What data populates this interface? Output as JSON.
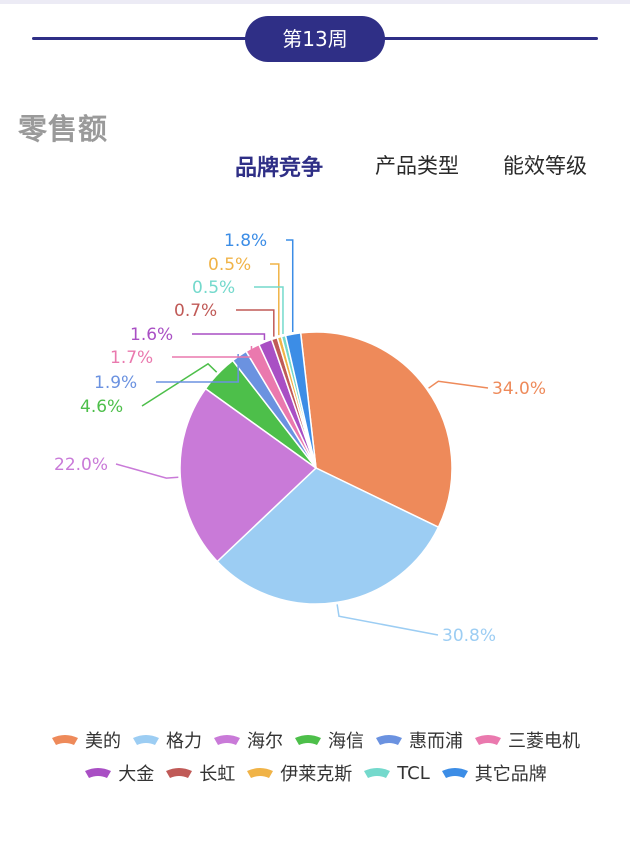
{
  "header": {
    "week_label": "第13周"
  },
  "section": {
    "title": "零售额"
  },
  "tabs": [
    {
      "label": "品牌竞争",
      "active": true
    },
    {
      "label": "产品类型",
      "active": false
    },
    {
      "label": "能效等级",
      "active": false
    }
  ],
  "chart_data": {
    "type": "pie",
    "categories": [
      "美的",
      "格力",
      "海尔",
      "海信",
      "惠而浦",
      "三菱电机",
      "大金",
      "长虹",
      "伊莱克斯",
      "TCL",
      "其它品牌"
    ],
    "values": [
      34.0,
      30.8,
      22.0,
      4.6,
      1.9,
      1.7,
      1.6,
      0.7,
      0.5,
      0.5,
      1.8
    ],
    "labels": [
      "34.0%",
      "30.8%",
      "22.0%",
      "4.6%",
      "1.9%",
      "1.7%",
      "1.6%",
      "0.7%",
      "0.5%",
      "0.5%",
      "1.8%"
    ],
    "colors": [
      "#ee8a5a",
      "#9ccdf3",
      "#c97ad8",
      "#4dbf4a",
      "#6b92e0",
      "#ea79ae",
      "#a94fc4",
      "#c05a57",
      "#f0b347",
      "#74d9cc",
      "#3c8de6"
    ],
    "legend_position": "bottom",
    "legend_icon": "fan-shape"
  }
}
